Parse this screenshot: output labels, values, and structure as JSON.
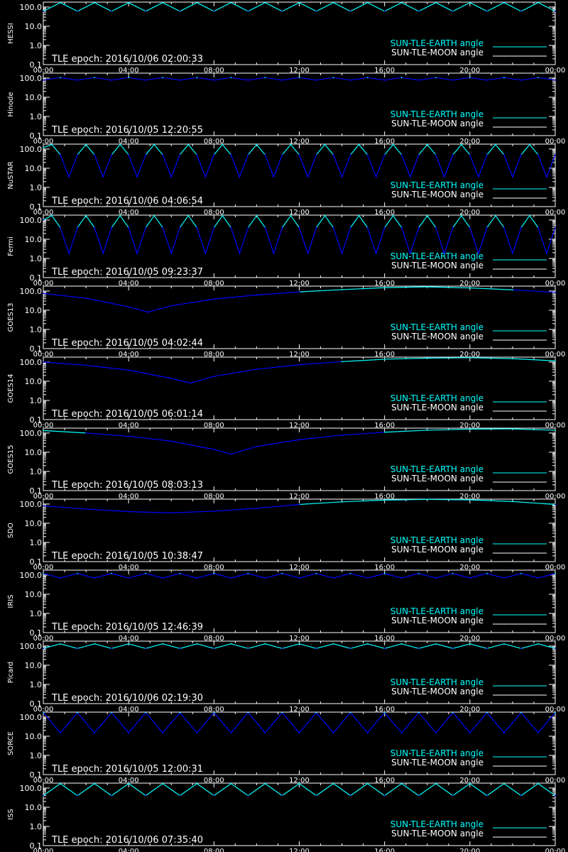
{
  "colors": {
    "background": "#000000",
    "axis": "#ffffff",
    "earth": "#00ffff",
    "earth_alt": "#0000ff",
    "moon": "#ffffff"
  },
  "legend": {
    "earth": "SUN-TLE-EARTH angle",
    "moon": "SUN-TLE-MOON angle"
  },
  "x_tick_labels": [
    "00:00",
    "04:00",
    "08:00",
    "12:00",
    "16:00",
    "20:00",
    "00:00"
  ],
  "y_tick_labels": [
    "0.1",
    "1.0",
    "10.0",
    "100.0"
  ],
  "chart_data": [
    {
      "type": "line",
      "ylabel": "HESSI",
      "epoch": "TLE epoch: 2016/10/06 02:00:33",
      "yscale": "log",
      "ylim": [
        0.1,
        180
      ],
      "xlim_hours": [
        0,
        24
      ],
      "x_hours": [
        0,
        0.8,
        1.6,
        2.4,
        3.2,
        4.0,
        4.8,
        5.6,
        6.4,
        7.2,
        8.0,
        8.8,
        9.6,
        10.4,
        11.2,
        12.0,
        12.8,
        13.6,
        14.4,
        15.2,
        16.0,
        16.8,
        17.6,
        18.4,
        19.2,
        20.0,
        20.8,
        21.6,
        22.4,
        23.2,
        24.0
      ],
      "series": [
        {
          "values": [
            60,
            170,
            60,
            170,
            60,
            170,
            60,
            170,
            60,
            170,
            60,
            170,
            60,
            170,
            60,
            170,
            60,
            170,
            60,
            170,
            60,
            170,
            60,
            170,
            60,
            170,
            60,
            170,
            60,
            170,
            60
          ]
        }
      ]
    },
    {
      "type": "line",
      "ylabel": "Hinode",
      "epoch": "TLE epoch: 2016/10/05 12:20:55",
      "yscale": "log",
      "ylim": [
        0.1,
        180
      ],
      "xlim_hours": [
        0,
        24
      ],
      "x_hours": [
        0,
        0.8,
        1.6,
        2.4,
        3.2,
        4.0,
        4.8,
        5.6,
        6.4,
        7.2,
        8.0,
        8.8,
        9.6,
        10.4,
        11.2,
        12.0,
        12.8,
        13.6,
        14.4,
        15.2,
        16.0,
        16.8,
        17.6,
        18.4,
        19.2,
        20.0,
        20.8,
        21.6,
        22.4,
        23.2,
        24.0
      ],
      "series": [
        {
          "values": [
            78,
            105,
            78,
            105,
            78,
            105,
            78,
            105,
            78,
            105,
            78,
            105,
            78,
            105,
            78,
            105,
            78,
            105,
            78,
            105,
            78,
            105,
            78,
            105,
            78,
            105,
            78,
            105,
            78,
            105,
            78
          ]
        }
      ]
    },
    {
      "type": "line",
      "ylabel": "NuSTAR",
      "epoch": "TLE epoch: 2016/10/06 04:06:54",
      "yscale": "log",
      "ylim": [
        0.1,
        180
      ],
      "xlim_hours": [
        0,
        24
      ],
      "x_hours": [
        0,
        0.4,
        0.8,
        1.2,
        1.6,
        2.0,
        2.4,
        2.8,
        3.2,
        3.6,
        4.0,
        4.4,
        4.8,
        5.2,
        5.6,
        6.0,
        6.4,
        6.8,
        7.2,
        7.6,
        8.0,
        8.4,
        8.8,
        9.2,
        9.6,
        10.0,
        10.4,
        10.8,
        11.2,
        11.6,
        12.0,
        12.4,
        12.8,
        13.2,
        13.6,
        14.0,
        14.4,
        14.8,
        15.2,
        15.6,
        16.0,
        16.4,
        16.8,
        17.2,
        17.6,
        18.0,
        18.4,
        18.8,
        19.2,
        19.6,
        20.0,
        20.4,
        20.8,
        21.2,
        21.6,
        22.0,
        22.4,
        22.8,
        23.2,
        23.6,
        24.0
      ],
      "series": [
        {
          "values": [
            120,
            170,
            50,
            3.5,
            50,
            170,
            50,
            3.5,
            50,
            170,
            50,
            3.5,
            50,
            170,
            50,
            3.5,
            50,
            170,
            50,
            3.5,
            50,
            170,
            50,
            3.5,
            50,
            170,
            50,
            3.5,
            50,
            170,
            50,
            3.5,
            50,
            170,
            50,
            3.5,
            50,
            170,
            50,
            3.5,
            50,
            170,
            50,
            3.5,
            50,
            170,
            50,
            3.5,
            50,
            170,
            50,
            3.5,
            50,
            170,
            50,
            3.5,
            50,
            170,
            50,
            3.5,
            50
          ]
        }
      ]
    },
    {
      "type": "line",
      "ylabel": "Fermi",
      "epoch": "TLE epoch: 2016/10/05 09:23:37",
      "yscale": "log",
      "ylim": [
        0.1,
        180
      ],
      "xlim_hours": [
        0,
        24
      ],
      "x_hours": [
        0,
        0.4,
        0.8,
        1.2,
        1.6,
        2.0,
        2.4,
        2.8,
        3.2,
        3.6,
        4.0,
        4.4,
        4.8,
        5.2,
        5.6,
        6.0,
        6.4,
        6.8,
        7.2,
        7.6,
        8.0,
        8.4,
        8.8,
        9.2,
        9.6,
        10.0,
        10.4,
        10.8,
        11.2,
        11.6,
        12.0,
        12.4,
        12.8,
        13.2,
        13.6,
        14.0,
        14.4,
        14.8,
        15.2,
        15.6,
        16.0,
        16.4,
        16.8,
        17.2,
        17.6,
        18.0,
        18.4,
        18.8,
        19.2,
        19.6,
        20.0,
        20.4,
        20.8,
        21.2,
        21.6,
        22.0,
        22.4,
        22.8,
        23.2,
        23.6,
        24.0
      ],
      "series": [
        {
          "values": [
            100,
            170,
            40,
            1.8,
            40,
            170,
            40,
            1.8,
            40,
            170,
            40,
            1.8,
            40,
            170,
            40,
            1.8,
            40,
            170,
            40,
            1.8,
            40,
            170,
            40,
            1.8,
            40,
            170,
            40,
            1.8,
            40,
            170,
            40,
            1.8,
            40,
            170,
            40,
            1.8,
            40,
            170,
            40,
            1.8,
            40,
            170,
            40,
            1.8,
            40,
            170,
            40,
            1.8,
            40,
            170,
            40,
            1.8,
            40,
            170,
            40,
            1.8,
            40,
            170,
            40,
            1.8,
            40
          ]
        }
      ]
    },
    {
      "type": "line",
      "ylabel": "GOES13",
      "epoch": "TLE epoch: 2016/10/05 04:02:44",
      "yscale": "log",
      "ylim": [
        0.1,
        180
      ],
      "xlim_hours": [
        0,
        24
      ],
      "x_hours": [
        0,
        2.0,
        4.0,
        4.9,
        6.0,
        8.0,
        10.0,
        12.0,
        14.0,
        16.0,
        18.0,
        20.0,
        22.0,
        24.0
      ],
      "series": [
        {
          "values": [
            75,
            42,
            15,
            8,
            17,
            38,
            62,
            90,
            118,
            150,
            165,
            145,
            115,
            85
          ]
        }
      ]
    },
    {
      "type": "line",
      "ylabel": "GOES14",
      "epoch": "TLE epoch: 2016/10/05 06:01:14",
      "yscale": "log",
      "ylim": [
        0.1,
        180
      ],
      "xlim_hours": [
        0,
        24
      ],
      "x_hours": [
        0,
        2.0,
        4.0,
        6.0,
        6.9,
        8.0,
        10.0,
        12.0,
        14.0,
        16.0,
        18.0,
        20.0,
        22.0,
        24.0
      ],
      "series": [
        {
          "values": [
            100,
            68,
            38,
            14,
            8,
            18,
            42,
            72,
            105,
            140,
            160,
            168,
            150,
            115
          ]
        }
      ]
    },
    {
      "type": "line",
      "ylabel": "GOES15",
      "epoch": "TLE epoch: 2016/10/05 08:03:13",
      "yscale": "log",
      "ylim": [
        0.1,
        180
      ],
      "xlim_hours": [
        0,
        24
      ],
      "x_hours": [
        0,
        2.0,
        4.0,
        6.0,
        8.0,
        8.8,
        10.0,
        12.0,
        14.0,
        16.0,
        18.0,
        20.0,
        22.0,
        24.0
      ],
      "series": [
        {
          "values": [
            135,
            100,
            68,
            38,
            14,
            8,
            20,
            45,
            78,
            110,
            140,
            160,
            165,
            140
          ]
        }
      ]
    },
    {
      "type": "line",
      "ylabel": "SDO",
      "epoch": "TLE epoch: 2016/10/05 10:38:47",
      "yscale": "log",
      "ylim": [
        0.1,
        180
      ],
      "xlim_hours": [
        0,
        24
      ],
      "x_hours": [
        0,
        2.0,
        4.0,
        6.0,
        8.0,
        10.0,
        12.0,
        14.0,
        16.0,
        18.0,
        20.0,
        22.0,
        24.0
      ],
      "series": [
        {
          "values": [
            80,
            55,
            40,
            35,
            42,
            60,
            95,
            130,
            160,
            175,
            165,
            135,
            95
          ]
        }
      ]
    },
    {
      "type": "line",
      "ylabel": "IRIS",
      "epoch": "TLE epoch: 2016/10/05 12:46:39",
      "yscale": "log",
      "ylim": [
        0.1,
        180
      ],
      "xlim_hours": [
        0,
        24
      ],
      "x_hours": [
        0,
        0.8,
        1.6,
        2.4,
        3.2,
        4.0,
        4.8,
        5.6,
        6.4,
        7.2,
        8.0,
        8.8,
        9.6,
        10.4,
        11.2,
        12.0,
        12.8,
        13.6,
        14.4,
        15.2,
        16.0,
        16.8,
        17.6,
        18.4,
        19.2,
        20.0,
        20.8,
        21.6,
        22.4,
        23.2,
        24.0
      ],
      "series": [
        {
          "values": [
            120,
            70,
            120,
            70,
            120,
            70,
            120,
            70,
            120,
            70,
            120,
            70,
            120,
            70,
            120,
            70,
            120,
            70,
            120,
            70,
            120,
            70,
            120,
            70,
            120,
            70,
            120,
            70,
            120,
            70,
            120
          ]
        }
      ]
    },
    {
      "type": "line",
      "ylabel": "Picard",
      "epoch": "TLE epoch: 2016/10/06 02:19:30",
      "yscale": "log",
      "ylim": [
        0.1,
        180
      ],
      "xlim_hours": [
        0,
        24
      ],
      "x_hours": [
        0,
        0.8,
        1.6,
        2.4,
        3.2,
        4.0,
        4.8,
        5.6,
        6.4,
        7.2,
        8.0,
        8.8,
        9.6,
        10.4,
        11.2,
        12.0,
        12.8,
        13.6,
        14.4,
        15.2,
        16.0,
        16.8,
        17.6,
        18.4,
        19.2,
        20.0,
        20.8,
        21.6,
        22.4,
        23.2,
        24.0
      ],
      "series": [
        {
          "values": [
            75,
            130,
            75,
            130,
            75,
            130,
            75,
            130,
            75,
            130,
            75,
            130,
            75,
            130,
            75,
            130,
            75,
            130,
            75,
            130,
            75,
            130,
            75,
            130,
            75,
            130,
            75,
            130,
            75,
            130,
            75
          ]
        }
      ]
    },
    {
      "type": "line",
      "ylabel": "SORCE",
      "epoch": "TLE epoch: 2016/10/05 12:00:31",
      "yscale": "log",
      "ylim": [
        0.1,
        180
      ],
      "xlim_hours": [
        0,
        24
      ],
      "x_hours": [
        0,
        0.8,
        1.6,
        2.4,
        3.2,
        4.0,
        4.8,
        5.6,
        6.4,
        7.2,
        8.0,
        8.8,
        9.6,
        10.4,
        11.2,
        12.0,
        12.8,
        13.6,
        14.4,
        15.2,
        16.0,
        16.8,
        17.6,
        18.4,
        19.2,
        20.0,
        20.8,
        21.6,
        22.4,
        23.2,
        24.0
      ],
      "series": [
        {
          "values": [
            170,
            15,
            170,
            15,
            170,
            15,
            170,
            15,
            170,
            15,
            170,
            15,
            170,
            15,
            170,
            15,
            170,
            15,
            170,
            15,
            170,
            15,
            170,
            15,
            170,
            15,
            170,
            15,
            170,
            15,
            170
          ]
        }
      ]
    },
    {
      "type": "line",
      "ylabel": "ISS",
      "epoch": "TLE epoch: 2016/10/06 07:35:40",
      "yscale": "log",
      "ylim": [
        0.1,
        180
      ],
      "xlim_hours": [
        0,
        24
      ],
      "x_hours": [
        0,
        0.8,
        1.6,
        2.4,
        3.2,
        4.0,
        4.8,
        5.6,
        6.4,
        7.2,
        8.0,
        8.8,
        9.6,
        10.4,
        11.2,
        12.0,
        12.8,
        13.6,
        14.4,
        15.2,
        16.0,
        16.8,
        17.6,
        18.4,
        19.2,
        20.0,
        20.8,
        21.6,
        22.4,
        23.2,
        24.0
      ],
      "series": [
        {
          "values": [
            40,
            170,
            40,
            170,
            40,
            170,
            40,
            170,
            40,
            170,
            40,
            170,
            40,
            170,
            40,
            170,
            40,
            170,
            40,
            170,
            40,
            170,
            40,
            170,
            40,
            170,
            40,
            170,
            40,
            170,
            40
          ]
        }
      ]
    }
  ]
}
